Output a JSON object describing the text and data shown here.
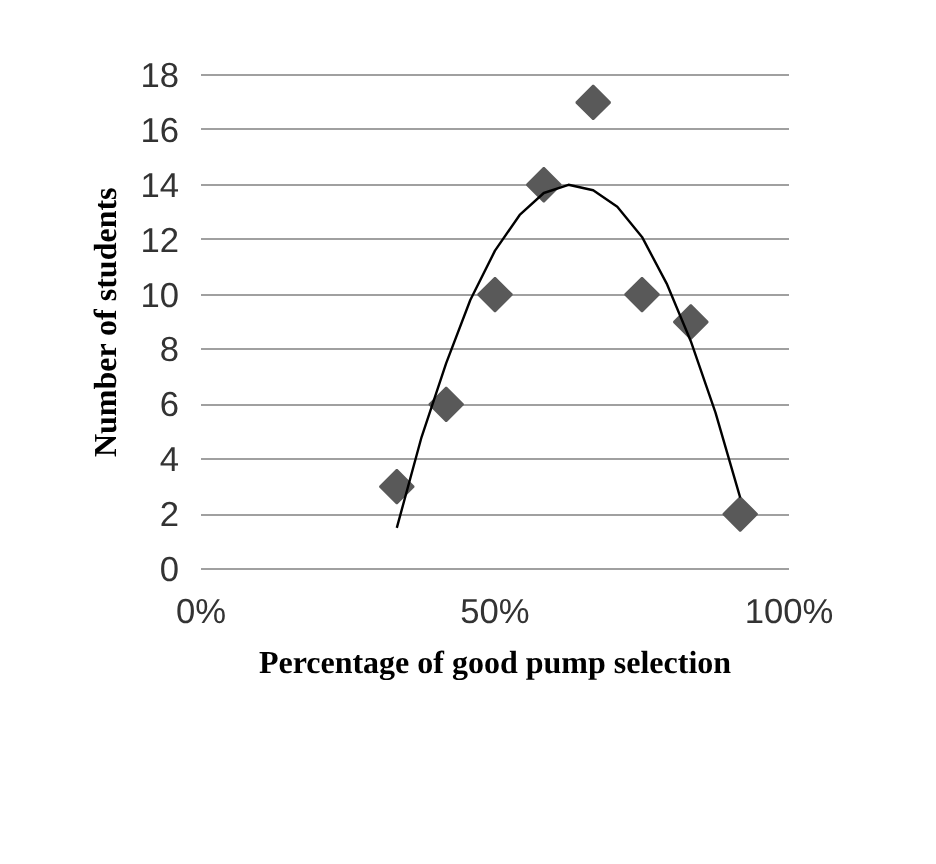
{
  "chart_data": {
    "type": "scatter",
    "xlabel": "Percentage of good pump selection",
    "ylabel": "Number of students",
    "xlim": [
      0,
      100
    ],
    "xticks": [
      {
        "value": 0,
        "label": "0%"
      },
      {
        "value": 50,
        "label": "50%"
      },
      {
        "value": 100,
        "label": "100%"
      }
    ],
    "ylim": [
      0,
      18
    ],
    "yticks": [
      0,
      2,
      4,
      6,
      8,
      10,
      12,
      14,
      16,
      18
    ],
    "grid": "y",
    "series": [
      {
        "marker": "diamond",
        "color": "#595959",
        "x": [
          33.3,
          41.7,
          50,
          58.3,
          66.7,
          75,
          83.3,
          91.7
        ],
        "values": [
          3,
          6,
          10,
          14,
          17,
          10,
          9,
          2
        ]
      },
      {
        "type": "line",
        "color": "#000000",
        "x": [
          33.3,
          37.5,
          41.7,
          45.8,
          50,
          54.2,
          58.3,
          62.5,
          66.7,
          70.8,
          75,
          79.2,
          83.3,
          87.5,
          91.7
        ],
        "values": [
          1.5,
          4.8,
          7.5,
          9.8,
          11.6,
          12.9,
          13.7,
          14.0,
          13.8,
          13.2,
          12.1,
          10.4,
          8.3,
          5.7,
          2.6
        ]
      }
    ]
  }
}
